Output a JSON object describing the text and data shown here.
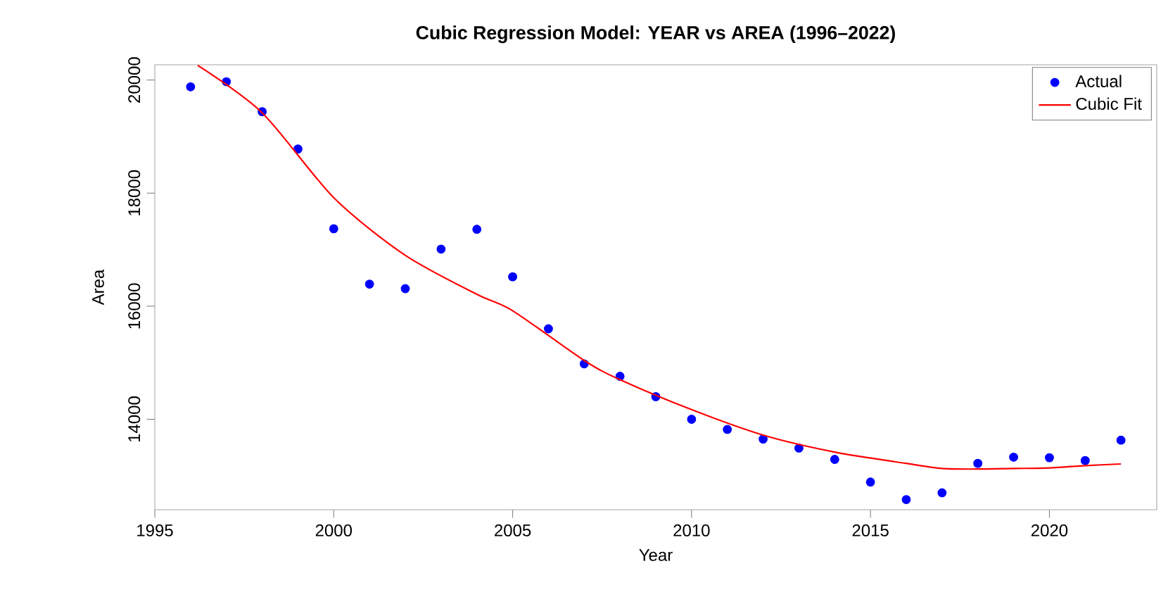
{
  "chart_data": {
    "type": "scatter",
    "title": "Cubic Regression Model: YEAR vs AREA (1996–2022)",
    "xlabel": "Year",
    "ylabel": "Area",
    "xlim": [
      1995,
      2023
    ],
    "ylim": [
      12400,
      20270
    ],
    "xticks": [
      1995,
      2000,
      2005,
      2010,
      2015,
      2020
    ],
    "yticks": [
      14000,
      16000,
      18000,
      20000
    ],
    "legend": "top right",
    "grid": false,
    "series": [
      {
        "name": "Actual",
        "marker": "circle",
        "color": "#0000ff",
        "x": [
          1996,
          1997,
          1998,
          1999,
          2000,
          2001,
          2002,
          2003,
          2004,
          2005,
          2006,
          2007,
          2008,
          2009,
          2010,
          2011,
          2012,
          2013,
          2014,
          2015,
          2016,
          2017,
          2018,
          2019,
          2020,
          2021,
          2022
        ],
        "values": [
          19880,
          19970,
          19440,
          18780,
          17370,
          16390,
          16310,
          17010,
          17360,
          16520,
          15600,
          14980,
          14760,
          14400,
          14000,
          13820,
          13650,
          13490,
          13290,
          12890,
          12580,
          12700,
          13220,
          13330,
          13320,
          13270,
          13630
        ]
      },
      {
        "name": "Cubic Fit",
        "type": "line",
        "marker": "none",
        "line_style": "solid",
        "color": "#ff0000",
        "x": [
          1996.2,
          1998,
          2000,
          2002,
          2004,
          2005,
          2007,
          2008,
          2010,
          2012,
          2014,
          2016,
          2017,
          2018,
          2019,
          2020,
          2021,
          2022
        ],
        "values": [
          20260,
          19420,
          17920,
          16900,
          16210,
          15920,
          15040,
          14700,
          14170,
          13720,
          13420,
          13220,
          13130,
          13120,
          13130,
          13140,
          13180,
          13210
        ]
      }
    ]
  }
}
